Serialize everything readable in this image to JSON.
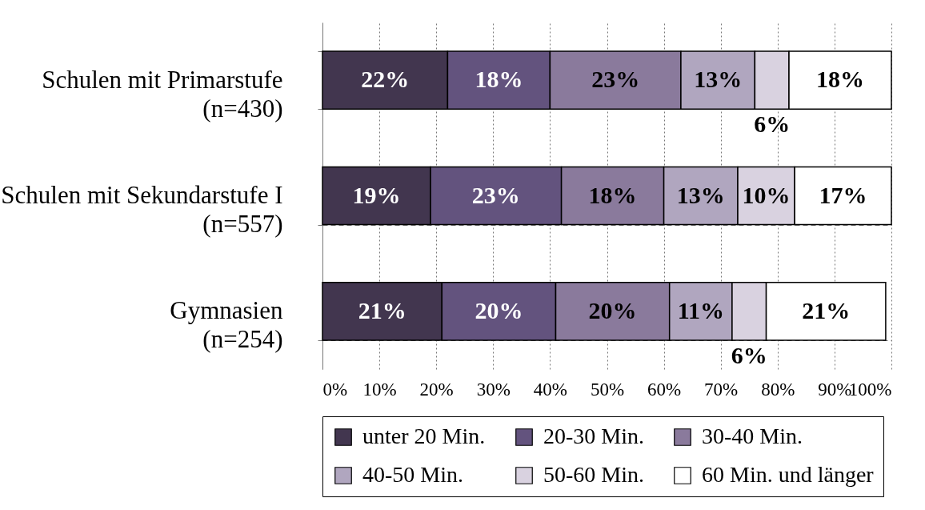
{
  "chart_data": {
    "type": "bar",
    "orientation": "horizontal",
    "stacked": true,
    "grid": true,
    "legend": "bottom",
    "categories": [
      "Schulen mit Primarstufe (n=430)",
      "Schulen mit Sekundarstufe I (n=557)",
      "Gymnasien (n=254)"
    ],
    "xlim": [
      0,
      100
    ],
    "xticks": [
      {
        "value": 0,
        "label": "0%"
      },
      {
        "value": 10,
        "label": "10%"
      },
      {
        "value": 20,
        "label": "20%"
      },
      {
        "value": 30,
        "label": "30%"
      },
      {
        "value": 40,
        "label": "40%"
      },
      {
        "value": 50,
        "label": "50%"
      },
      {
        "value": 60,
        "label": "60%"
      },
      {
        "value": 70,
        "label": "70%"
      },
      {
        "value": 80,
        "label": "80%"
      },
      {
        "value": 90,
        "label": "90%"
      },
      {
        "value": 100,
        "label": "100%"
      }
    ],
    "series": [
      {
        "name": "unter 20 Min.",
        "color": "#42364f",
        "values": [
          22,
          19,
          21
        ],
        "value_labels": [
          "22%",
          "19%",
          "21%"
        ]
      },
      {
        "name": "20-30 Min.",
        "color": "#63537e",
        "values": [
          18,
          23,
          20
        ],
        "value_labels": [
          "18%",
          "23%",
          "20%"
        ]
      },
      {
        "name": "30-40 Min.",
        "color": "#8a7a9c",
        "values": [
          23,
          18,
          20
        ],
        "value_labels": [
          "23%",
          "18%",
          "20%"
        ]
      },
      {
        "name": "40-50 Min.",
        "color": "#b0a6bf",
        "values": [
          13,
          13,
          11
        ],
        "value_labels": [
          "13%",
          "13%",
          "11%"
        ]
      },
      {
        "name": "50-60 Min.",
        "color": "#d9d2e0",
        "values": [
          6,
          10,
          6
        ],
        "value_labels": [
          "6%",
          "10%",
          "6%"
        ]
      },
      {
        "name": "60 Min. und länger",
        "color": "#ffffff",
        "values": [
          18,
          17,
          21
        ],
        "value_labels": [
          "18%",
          "17%",
          "21%"
        ]
      }
    ]
  }
}
